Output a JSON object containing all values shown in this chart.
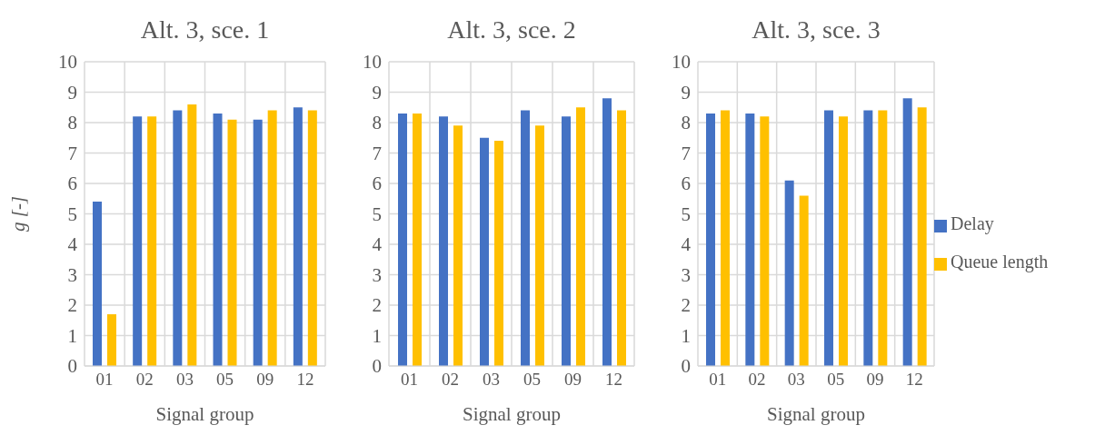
{
  "chart_data": [
    {
      "type": "bar",
      "title": "Alt. 3, sce. 1",
      "xlabel": "Signal group",
      "ylabel": "g [-]",
      "categories": [
        "01",
        "02",
        "03",
        "05",
        "09",
        "12"
      ],
      "series": [
        {
          "color": "#4472c4",
          "values": [
            5.4,
            8.2,
            8.4,
            8.3,
            8.1,
            8.5
          ]
        },
        {
          "color": "#ffc000",
          "values": [
            1.7,
            8.2,
            8.6,
            8.1,
            8.4,
            8.4
          ]
        }
      ],
      "ylim": [
        0,
        10
      ],
      "yticks": [
        0,
        1,
        2,
        3,
        4,
        5,
        6,
        7,
        8,
        9,
        10
      ],
      "grid": true
    },
    {
      "type": "bar",
      "title": "Alt. 3, sce. 2",
      "xlabel": "Signal group",
      "categories": [
        "01",
        "02",
        "03",
        "05",
        "09",
        "12"
      ],
      "series": [
        {
          "color": "#4472c4",
          "values": [
            8.3,
            8.2,
            7.5,
            8.4,
            8.2,
            8.8
          ]
        },
        {
          "color": "#ffc000",
          "values": [
            8.3,
            7.9,
            7.4,
            7.9,
            8.5,
            8.4
          ]
        }
      ],
      "ylim": [
        0,
        10
      ],
      "yticks": [
        0,
        1,
        2,
        3,
        4,
        5,
        6,
        7,
        8,
        9,
        10
      ],
      "grid": true
    },
    {
      "type": "bar",
      "title": "Alt. 3, sce. 3",
      "xlabel": "Signal group",
      "categories": [
        "01",
        "02",
        "03",
        "05",
        "09",
        "12"
      ],
      "series": [
        {
          "name": "Delay",
          "color": "#4472c4",
          "values": [
            8.3,
            8.3,
            6.1,
            8.4,
            8.4,
            8.8
          ]
        },
        {
          "name": "Queue length",
          "color": "#ffc000",
          "values": [
            8.4,
            8.2,
            5.6,
            8.2,
            8.4,
            8.5
          ]
        }
      ],
      "ylim": [
        0,
        10
      ],
      "yticks": [
        0,
        1,
        2,
        3,
        4,
        5,
        6,
        7,
        8,
        9,
        10
      ],
      "grid": true,
      "legend": "right"
    }
  ]
}
